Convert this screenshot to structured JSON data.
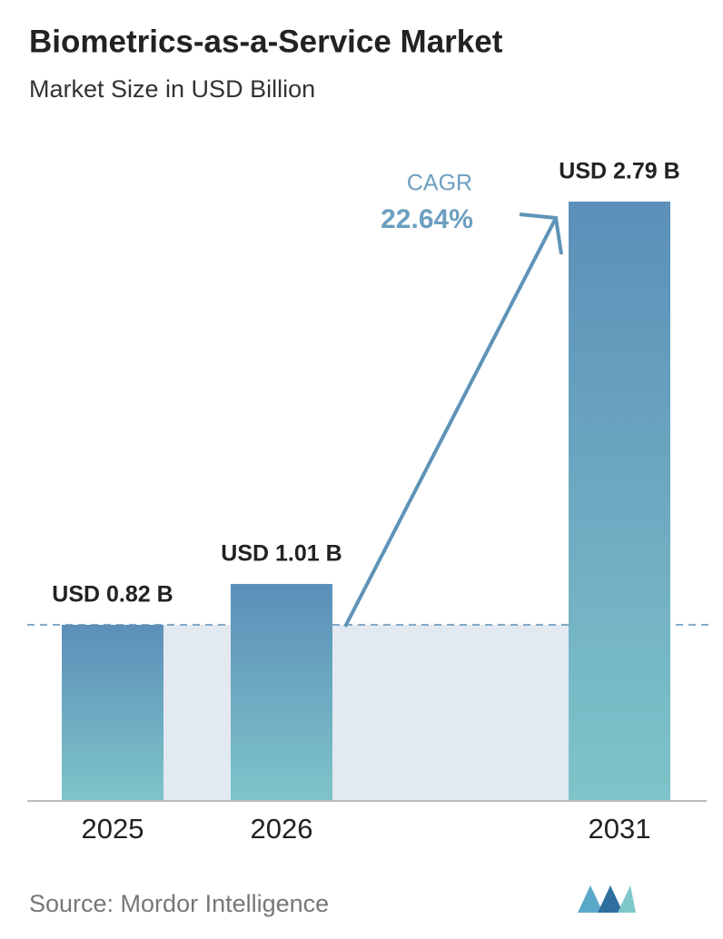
{
  "chart_data": {
    "type": "bar",
    "title": "Biometrics-as-a-Service Market",
    "subtitle": "Market Size in USD Billion",
    "categories": [
      "2025",
      "2026",
      "2031"
    ],
    "values": [
      0.82,
      1.01,
      2.79
    ],
    "value_labels": [
      "USD 0.82 B",
      "USD 1.01 B",
      "USD 2.79 B"
    ],
    "color": "#6a9fc0",
    "annotation": {
      "label": "CAGR",
      "value": "22.64%"
    },
    "source": "Source:  Mordor Intelligence"
  }
}
